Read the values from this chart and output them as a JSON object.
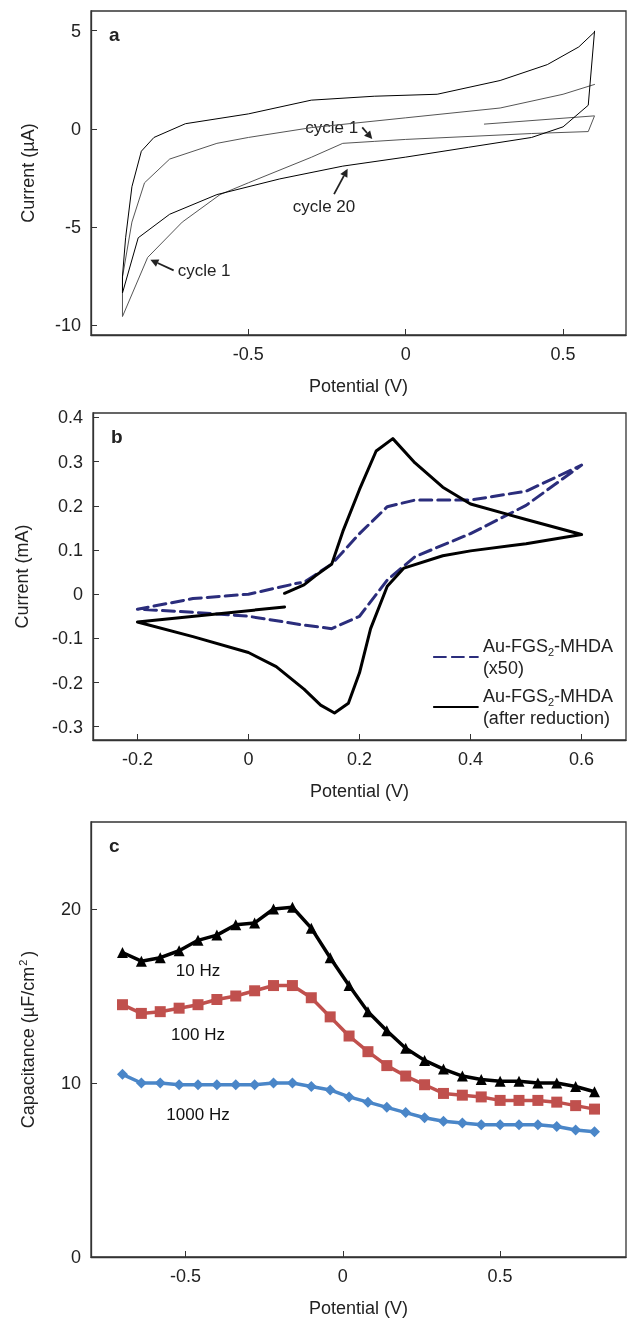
{
  "chart_data": [
    {
      "type": "line",
      "xlabel": "Potential (V)",
      "ylabel": "Current (µA)",
      "xlim": [
        -1,
        0.7
      ],
      "ylim": [
        -10.5,
        6
      ],
      "xticks": [
        -0.5,
        0,
        0.5
      ],
      "yticks": [
        -10,
        -5,
        0,
        5
      ],
      "marker": "none",
      "line_style": "solid",
      "annotations": [
        "a",
        {
          "text": "cycle 1",
          "x": -0.1,
          "y": -0.64
        },
        {
          "text": "cycle 20",
          "x": -0.18,
          "y": -1.9
        },
        {
          "text": "cycle 1",
          "x": -0.82,
          "y": -6.6
        }
      ],
      "series": [
        {
          "color": "#555555",
          "x": [
            0.25,
            0.6,
            0.58,
            0.4,
            0,
            -0.1,
            -0.2,
            -0.3,
            -0.5,
            -0.59,
            -0.71,
            -0.82,
            -0.9,
            -0.9,
            -0.87,
            -0.83,
            -0.75,
            -0.6,
            -0.5,
            -0.3,
            0,
            0.3,
            0.5,
            0.6
          ],
          "values": [
            0.24,
            0.66,
            -0.14,
            -0.24,
            -0.54,
            -0.64,
            -0.74,
            -1.45,
            -2.75,
            -3.35,
            -4.75,
            -6.55,
            -9.56,
            -7.55,
            -4.75,
            -2.75,
            -1.54,
            -0.74,
            -0.44,
            0.06,
            0.56,
            1.06,
            1.76,
            2.26
          ]
        },
        {
          "color": "#000000",
          "x": [
            0.6,
            0.58,
            0.5,
            0.4,
            0.2,
            0,
            -0.2,
            -0.4,
            -0.6,
            -0.75,
            -0.85,
            -0.9,
            -0.9,
            -0.89,
            -0.87,
            -0.84,
            -0.8,
            -0.7,
            -0.5,
            -0.3,
            -0.1,
            0.1,
            0.3,
            0.45,
            0.55,
            0.598
          ],
          "values": [
            4.97,
            1.2,
            0.1,
            -0.44,
            -0.94,
            -1.44,
            -1.9,
            -2.55,
            -3.35,
            -4.35,
            -5.55,
            -8.36,
            -7.5,
            -5.55,
            -2.95,
            -1.14,
            -0.44,
            0.26,
            0.76,
            1.46,
            1.66,
            1.76,
            2.46,
            3.27,
            4.17,
            4.9
          ]
        }
      ]
    },
    {
      "type": "line",
      "xlabel": "Potential (V)",
      "ylabel": "Current (mA)",
      "xlim": [
        -0.28,
        0.68
      ],
      "ylim": [
        -0.33,
        0.41
      ],
      "xticks": [
        -0.2,
        0,
        0.2,
        0.4,
        0.6
      ],
      "yticks": [
        -0.3,
        -0.2,
        -0.1,
        0,
        0.1,
        0.2,
        0.3,
        0.4
      ],
      "marker": "none",
      "legend": "bottom right",
      "annotations": [
        "b"
      ],
      "series": [
        {
          "name": "Au-FGS$_{2}$-MHDA (x50)",
          "color": "#2b2d7c",
          "line_style": "dashed",
          "x": [
            0.075,
            0,
            -0.1,
            -0.2,
            -0.1,
            0,
            0.1,
            0.15,
            0.2,
            0.25,
            0.3,
            0.4,
            0.5,
            0.6,
            0.5,
            0.4,
            0.3,
            0.25,
            0.2,
            0.15,
            0.1,
            0.085
          ],
          "values": [
            0.021,
            0.0,
            -0.01,
            -0.034,
            -0.041,
            -0.05,
            -0.07,
            -0.078,
            -0.05,
            0.032,
            0.085,
            0.137,
            0.201,
            0.292,
            0.233,
            0.213,
            0.213,
            0.198,
            0.137,
            0.068,
            0.027,
            0.024
          ]
        },
        {
          "name": "Au-FGS$_{2}$-MHDA (after reduction)",
          "color": "#000000",
          "line_style": "solid",
          "x": [
            0.065,
            -0.2,
            -0.1,
            0,
            0.05,
            0.1,
            0.13,
            0.155,
            0.18,
            0.2,
            0.22,
            0.25,
            0.28,
            0.35,
            0.4,
            0.5,
            0.6,
            0.5,
            0.4,
            0.35,
            0.3,
            0.26,
            0.23,
            0.2,
            0.17,
            0.15,
            0.12,
            0.1,
            0.065
          ],
          "values": [
            -0.029,
            -0.063,
            -0.096,
            -0.132,
            -0.164,
            -0.215,
            -0.251,
            -0.269,
            -0.247,
            -0.178,
            -0.078,
            0.018,
            0.059,
            0.087,
            0.098,
            0.114,
            0.135,
            0.169,
            0.204,
            0.242,
            0.297,
            0.352,
            0.324,
            0.237,
            0.142,
            0.068,
            0.041,
            0.021,
            0.002
          ]
        }
      ]
    },
    {
      "type": "line",
      "xlabel": "Potential (V)",
      "ylabel": "Capacitance (µF/cm$^{2}$)",
      "xlim": [
        -0.8,
        0.9
      ],
      "ylim": [
        0,
        25
      ],
      "xticks": [
        -0.5,
        0,
        0.5
      ],
      "yticks": [
        0,
        10,
        20
      ],
      "line_style": "solid",
      "annotations": [
        "c"
      ],
      "x": [
        -0.7,
        -0.64,
        -0.58,
        -0.52,
        -0.46,
        -0.4,
        -0.34,
        -0.28,
        -0.22,
        -0.16,
        -0.1,
        -0.04,
        0.02,
        0.08,
        0.14,
        0.2,
        0.26,
        0.32,
        0.38,
        0.44,
        0.5,
        0.56,
        0.62,
        0.68,
        0.74,
        0.8
      ],
      "series": [
        {
          "name": "10 Hz",
          "color": "#000000",
          "marker": "triangle",
          "values": [
            17.5,
            17.0,
            17.2,
            17.6,
            18.2,
            18.5,
            19.1,
            19.2,
            20.0,
            20.1,
            18.9,
            17.2,
            15.6,
            14.1,
            13.0,
            12.0,
            11.3,
            10.8,
            10.4,
            10.2,
            10.1,
            10.1,
            10.0,
            10.0,
            9.8,
            9.5
          ]
        },
        {
          "name": "100 Hz",
          "color": "#c0504d",
          "marker": "square",
          "values": [
            14.5,
            14.0,
            14.1,
            14.3,
            14.5,
            14.8,
            15.0,
            15.3,
            15.6,
            15.6,
            14.9,
            13.8,
            12.7,
            11.8,
            11.0,
            10.4,
            9.9,
            9.4,
            9.3,
            9.2,
            9.0,
            9.0,
            9.0,
            8.9,
            8.7,
            8.5
          ]
        },
        {
          "name": "1000 Hz",
          "color": "#4a86c8",
          "marker": "diamond",
          "values": [
            10.5,
            10.0,
            10.0,
            9.9,
            9.9,
            9.9,
            9.9,
            9.9,
            10.0,
            10.0,
            9.8,
            9.6,
            9.2,
            8.9,
            8.6,
            8.3,
            8.0,
            7.8,
            7.7,
            7.6,
            7.6,
            7.6,
            7.6,
            7.5,
            7.3,
            7.2
          ]
        }
      ]
    }
  ]
}
